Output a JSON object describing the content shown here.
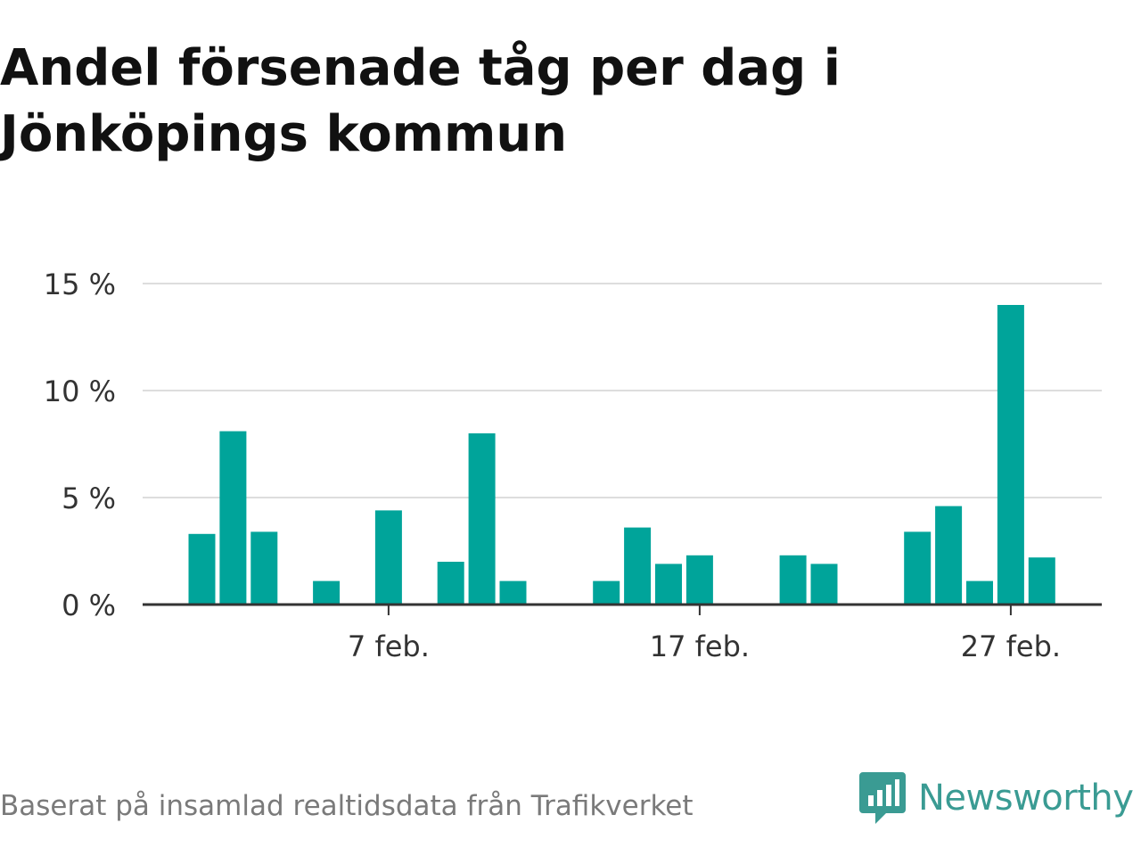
{
  "title_line1": "Andel försenade tåg per dag i",
  "title_line2": "Jönköpings kommun",
  "source": "Baserat på insamlad realtidsdata från Trafikverket",
  "brand": {
    "name": "Newsworthy",
    "icon": "chat-bubble-bar-chart-icon",
    "color": "#3a9b93"
  },
  "chart_data": {
    "type": "bar",
    "title": "Andel försenade tåg per dag i Jönköpings kommun",
    "unit": "%",
    "bar_color": "#00a49a",
    "grid": true,
    "ylim": [
      0,
      15
    ],
    "yticks": [
      0,
      5,
      10,
      15
    ],
    "ytick_labels": [
      "0 %",
      "5 %",
      "10 %",
      "15 %"
    ],
    "xticks": [
      7,
      17,
      27
    ],
    "xtick_labels": [
      "7 feb.",
      "17 feb.",
      "27 feb."
    ],
    "x": [
      1,
      2,
      3,
      4,
      5,
      6,
      7,
      8,
      9,
      10,
      11,
      12,
      13,
      14,
      15,
      16,
      17,
      18,
      19,
      20,
      21,
      22,
      23,
      24,
      25,
      26,
      27,
      28
    ],
    "values": [
      3.3,
      8.1,
      3.4,
      0,
      1.1,
      0,
      4.4,
      0,
      2.0,
      8.0,
      1.1,
      0,
      0,
      1.1,
      3.6,
      1.9,
      2.3,
      0,
      0,
      2.3,
      1.9,
      0,
      0,
      3.4,
      4.6,
      1.1,
      14.0,
      2.2
    ]
  }
}
